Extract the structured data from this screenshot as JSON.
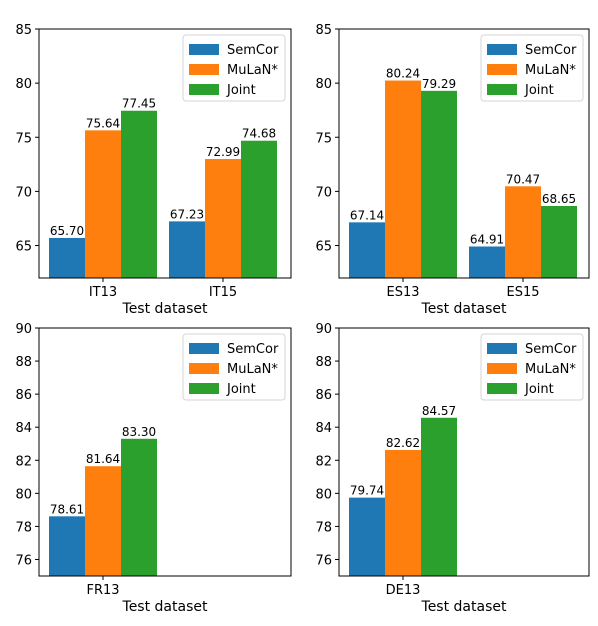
{
  "colors": {
    "SemCor": "#1f77b4",
    "MuLaN*": "#ff7f0e",
    "Joint": "#2ca02c"
  },
  "chart_data": [
    {
      "type": "bar",
      "categories": [
        "IT13",
        "IT15"
      ],
      "series": [
        {
          "name": "SemCor",
          "values": [
            65.7,
            67.23
          ]
        },
        {
          "name": "MuLaN*",
          "values": [
            75.64,
            72.99
          ]
        },
        {
          "name": "Joint",
          "values": [
            77.45,
            74.68
          ]
        }
      ],
      "value_labels": [
        [
          "65.70",
          "67.23"
        ],
        [
          "75.64",
          "72.99"
        ],
        [
          "77.45",
          "74.68"
        ]
      ],
      "xlabel": "Test dataset",
      "ylim": [
        62,
        85
      ],
      "yticks": [
        65,
        70,
        75,
        80,
        85
      ],
      "legend": "top-right",
      "grid": false
    },
    {
      "type": "bar",
      "categories": [
        "ES13",
        "ES15"
      ],
      "series": [
        {
          "name": "SemCor",
          "values": [
            67.14,
            64.91
          ]
        },
        {
          "name": "MuLaN*",
          "values": [
            80.24,
            70.47
          ]
        },
        {
          "name": "Joint",
          "values": [
            79.29,
            68.65
          ]
        }
      ],
      "value_labels": [
        [
          "67.14",
          "64.91"
        ],
        [
          "80.24",
          "70.47"
        ],
        [
          "79.29",
          "68.65"
        ]
      ],
      "xlabel": "Test dataset",
      "ylim": [
        62,
        85
      ],
      "yticks": [
        65,
        70,
        75,
        80,
        85
      ],
      "legend": "top-right",
      "grid": false
    },
    {
      "type": "bar",
      "categories": [
        "FR13"
      ],
      "series": [
        {
          "name": "SemCor",
          "values": [
            78.61
          ]
        },
        {
          "name": "MuLaN*",
          "values": [
            81.64
          ]
        },
        {
          "name": "Joint",
          "values": [
            83.3
          ]
        }
      ],
      "value_labels": [
        [
          "78.61"
        ],
        [
          "81.64"
        ],
        [
          "83.30"
        ]
      ],
      "xlabel": "Test dataset",
      "ylim": [
        75,
        90
      ],
      "yticks": [
        76,
        78,
        80,
        82,
        84,
        86,
        88,
        90
      ],
      "legend": "top-right",
      "grid": false
    },
    {
      "type": "bar",
      "categories": [
        "DE13"
      ],
      "series": [
        {
          "name": "SemCor",
          "values": [
            79.74
          ]
        },
        {
          "name": "MuLaN*",
          "values": [
            82.62
          ]
        },
        {
          "name": "Joint",
          "values": [
            84.57
          ]
        }
      ],
      "value_labels": [
        [
          "79.74"
        ],
        [
          "82.62"
        ],
        [
          "84.57"
        ]
      ],
      "xlabel": "Test dataset",
      "ylim": [
        75,
        90
      ],
      "yticks": [
        76,
        78,
        80,
        82,
        84,
        86,
        88,
        90
      ],
      "legend": "top-right",
      "grid": false
    }
  ]
}
